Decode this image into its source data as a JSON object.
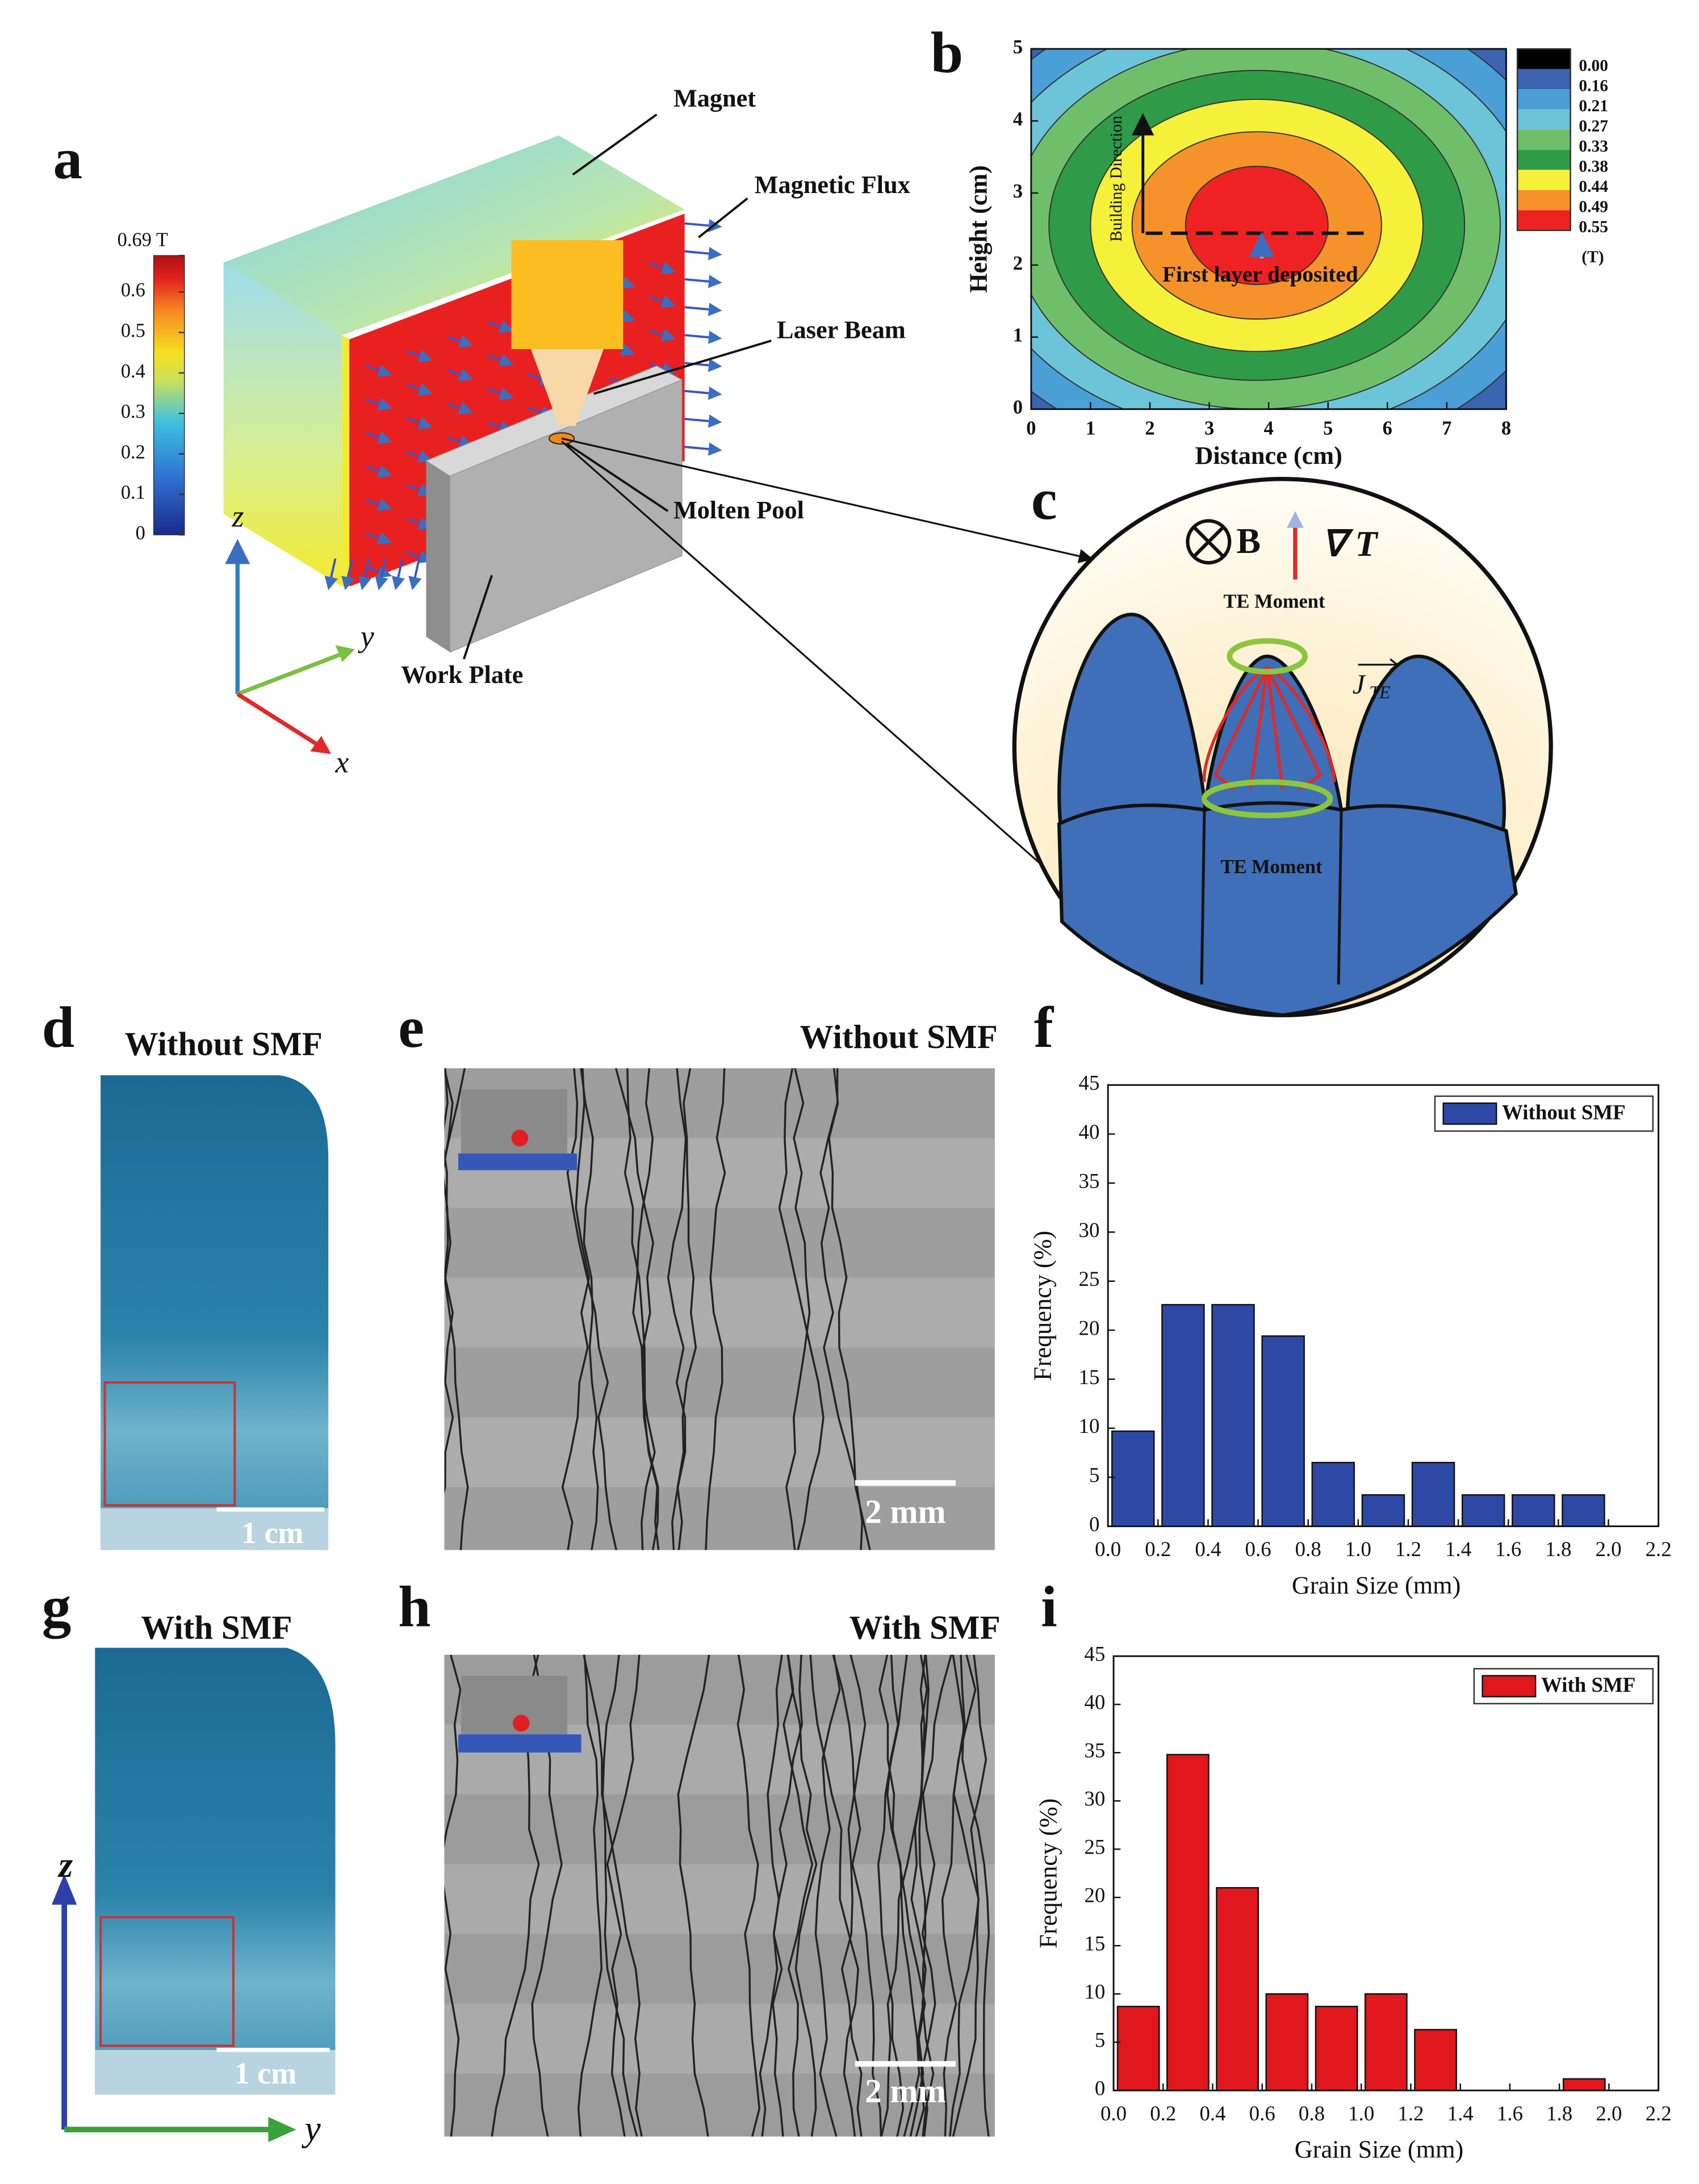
{
  "panel_labels": [
    "a",
    "b",
    "c",
    "d",
    "e",
    "f",
    "g",
    "h",
    "i"
  ],
  "panel_a": {
    "labels": {
      "magnet": "Magnet",
      "flux": "Magnetic Flux",
      "laser": "Laser Beam",
      "pool": "Molten Pool",
      "plate": "Work Plate"
    },
    "axes": {
      "z": "z",
      "y": "y",
      "x": "x"
    },
    "colorbar": {
      "ylim": [
        0,
        0.69
      ],
      "ticks": [
        {
          "value": 0.69,
          "label": "0.69 T"
        },
        0.6,
        0.5,
        0.4,
        0.3,
        0.2,
        0.1,
        0
      ]
    }
  },
  "panel_c": {
    "b_field": "B",
    "gradient": "∇ T",
    "moment_top": "TE Moment",
    "current": "J",
    "current_sub": "TE",
    "moment_bottom": "TE Moment"
  },
  "panel_d": {
    "title": "Without SMF",
    "scale": "1 cm"
  },
  "panel_e": {
    "title": "Without SMF",
    "scale": "2 mm"
  },
  "panel_g": {
    "title": "With SMF",
    "scale": "1 cm",
    "axes": {
      "z": "z",
      "y": "y"
    }
  },
  "panel_h": {
    "title": "With SMF",
    "scale": "2 mm"
  },
  "chart_data": [
    {
      "type": "contour",
      "xlabel": "Distance (cm)",
      "ylabel": "Height (cm)",
      "xlim": [
        0,
        8
      ],
      "ylim": [
        0,
        5
      ],
      "xticks": [
        0,
        1,
        2,
        3,
        4,
        5,
        6,
        7,
        8
      ],
      "yticks": [
        0,
        1,
        2,
        3,
        4,
        5
      ],
      "levels": [
        {
          "value": 0,
          "label": "0.00"
        },
        0.16,
        0.21,
        0.27,
        0.33,
        0.38,
        0.44,
        0.49,
        0.55
      ],
      "colors": [
        "#000000",
        "#3a63b0",
        "#4a9fd6",
        "#6cc4d8",
        "#6fbf6a",
        "#2f9a48",
        "#f5f03a",
        "#f5922a",
        "#ee2222"
      ],
      "colorbar_unit": "(T)",
      "annotations": [
        "Building Direction",
        "First layer deposited"
      ]
    },
    {
      "type": "histogram",
      "xlabel": "Grain Size (mm)",
      "ylabel": "Frequency (%)",
      "bins": [
        0,
        0.2,
        0.4,
        0.6,
        0.8,
        1,
        1.2,
        1.4,
        1.6,
        1.8,
        2
      ],
      "series": [
        {
          "name": "Without SMF",
          "color": "#2e49a5",
          "values": [
            9.7,
            22.6,
            22.6,
            19.4,
            6.5,
            3.2,
            6.5,
            3.2,
            3.2,
            3.2
          ]
        }
      ],
      "xlim": [
        0,
        2.2
      ],
      "xticks": [
        {
          "value": 0,
          "label": "0.0"
        },
        0.2,
        0.4,
        0.6,
        0.8,
        {
          "value": 1,
          "label": "1.0"
        },
        1.2,
        1.4,
        1.6,
        1.8,
        {
          "value": 2,
          "label": "2.0"
        },
        2.2
      ],
      "ylim": [
        0,
        45
      ],
      "yticks": [
        0,
        5,
        10,
        15,
        20,
        25,
        30,
        35,
        40,
        45
      ],
      "legend": "upper right"
    },
    {
      "type": "histogram",
      "xlabel": "Grain Size (mm)",
      "ylabel": "Frequency (%)",
      "bins": [
        0,
        0.2,
        0.4,
        0.6,
        0.8,
        1,
        1.2,
        1.4,
        1.6,
        1.8,
        2
      ],
      "series": [
        {
          "name": "With SMF",
          "color": "#e0171c",
          "values": [
            8.7,
            34.8,
            21.0,
            10.0,
            8.7,
            10.0,
            6.3,
            0,
            0,
            1.2
          ]
        }
      ],
      "xlim": [
        0,
        2.2
      ],
      "xticks": [
        {
          "value": 0,
          "label": "0.0"
        },
        0.2,
        0.4,
        0.6,
        0.8,
        {
          "value": 1,
          "label": "1.0"
        },
        1.2,
        1.4,
        1.6,
        1.8,
        {
          "value": 2,
          "label": "2.0"
        },
        2.2
      ],
      "ylim": [
        0,
        45
      ],
      "yticks": [
        0,
        5,
        10,
        15,
        20,
        25,
        30,
        35,
        40,
        45
      ],
      "legend": "upper right"
    }
  ]
}
